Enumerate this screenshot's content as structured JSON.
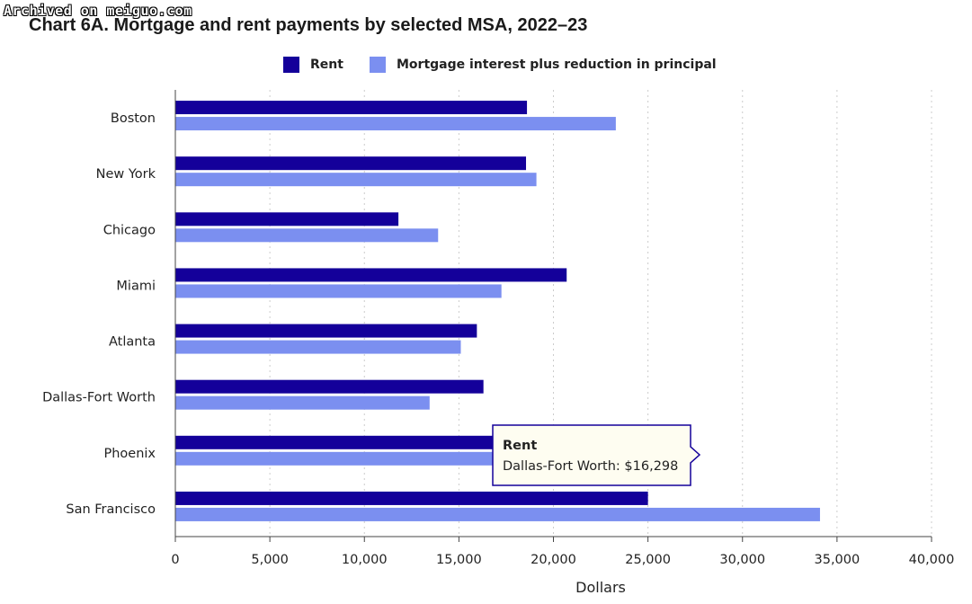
{
  "watermark": "Archived on meiguo.com",
  "colors": {
    "rent": "#14009a",
    "mortgage": "#7b8ff0",
    "grid": "#cccccc",
    "axis": "#444444",
    "tooltip_border": "#14009a",
    "tooltip_bg": "#fefdf1"
  },
  "chart_data": {
    "type": "bar",
    "orientation": "horizontal",
    "title": "Chart 6A. Mortgage and rent payments by selected MSA, 2022–23",
    "xlabel": "Dollars",
    "ylabel": "",
    "xlim": [
      0,
      40000
    ],
    "x_ticks": [
      0,
      5000,
      10000,
      15000,
      20000,
      25000,
      30000,
      35000,
      40000
    ],
    "x_tick_labels": [
      "0",
      "5,000",
      "10,000",
      "15,000",
      "20,000",
      "25,000",
      "30,000",
      "35,000",
      "40,000"
    ],
    "grid": "vertical dotted",
    "legend_position": "top-center",
    "categories": [
      "Boston",
      "New York",
      "Chicago",
      "Miami",
      "Atlanta",
      "Dallas-Fort Worth",
      "Phoenix",
      "San Francisco"
    ],
    "series": [
      {
        "name": "Rent",
        "color": "#14009a",
        "values": [
          18600,
          18550,
          11800,
          20700,
          15950,
          16298,
          17600,
          25000
        ]
      },
      {
        "name": "Mortgage interest plus reduction in principal",
        "color": "#7b8ff0",
        "values": [
          23300,
          19100,
          13900,
          17250,
          15100,
          13450,
          17600,
          34100
        ]
      }
    ]
  },
  "tooltip": {
    "title": "Rent",
    "body": "Dallas-Fort Worth: $16,298"
  }
}
